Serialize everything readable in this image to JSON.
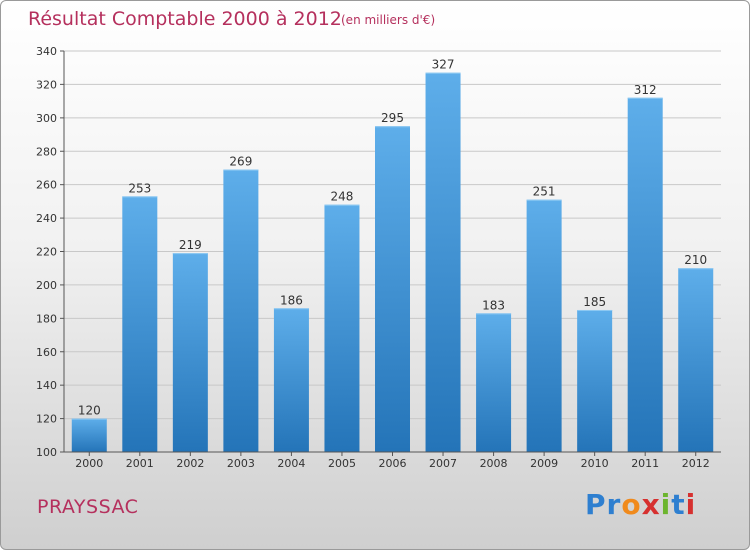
{
  "title": "Résultat Comptable 2000 à 2012",
  "subtitle": "(en milliers d'€)",
  "commune": "PRAYSSAC",
  "logo": {
    "letters": [
      "P",
      "r",
      "o",
      "x",
      "i",
      "t",
      "i"
    ],
    "colors": [
      "#2e7fd0",
      "#2e7fd0",
      "#f08a1c",
      "#d6302f",
      "#6cb52e",
      "#2e7fd0",
      "#d6302f"
    ]
  },
  "colors": {
    "bar_top": "#5eaeea",
    "bar_bottom": "#2474b8",
    "title": "#b5305d",
    "grid": "#c8c8c8"
  },
  "chart_data": {
    "type": "bar",
    "title": "Résultat Comptable 2000 à 2012",
    "xlabel": "",
    "ylabel": "",
    "categories": [
      "2000",
      "2001",
      "2002",
      "2003",
      "2004",
      "2005",
      "2006",
      "2007",
      "2008",
      "2009",
      "2010",
      "2011",
      "2012"
    ],
    "values": [
      120,
      253,
      219,
      269,
      186,
      248,
      295,
      327,
      183,
      251,
      185,
      312,
      210
    ],
    "ylim": [
      100,
      340
    ],
    "yticks": [
      100,
      120,
      140,
      160,
      180,
      200,
      220,
      240,
      260,
      280,
      300,
      320,
      340
    ],
    "grid": true
  }
}
